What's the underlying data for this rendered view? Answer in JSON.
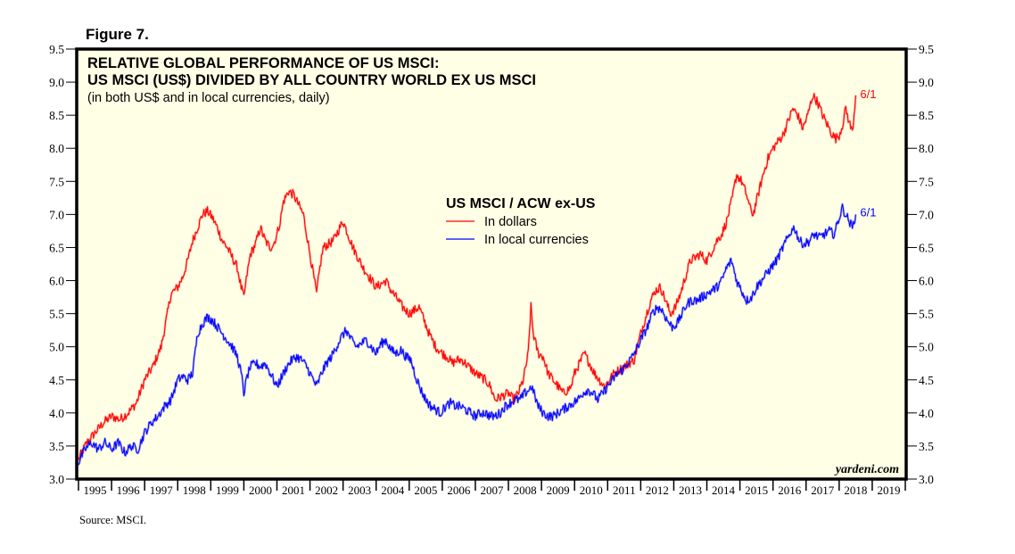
{
  "figure_label": "Figure 7.",
  "source": "Source: MSCI.",
  "watermark": "yardeni.com",
  "colors": {
    "plot_background": "#ffffe6",
    "dollars": "#ff0000",
    "local": "#0000ff"
  },
  "chart_data": {
    "type": "line",
    "title": "RELATIVE GLOBAL PERFORMANCE OF US MSCI:",
    "title_line2": "US MSCI (US$) DIVIDED BY ALL COUNTRY WORLD EX US MSCI",
    "subtitle": "(in both US$ and in local currencies, daily)",
    "legend_title": "US MSCI / ACW ex-US",
    "legend_position": "center-top",
    "xlabel": "",
    "ylabel": "",
    "xlim": [
      1995,
      2020
    ],
    "ylim": [
      3.0,
      9.5
    ],
    "y_ticks": [
      "3.0",
      "3.5",
      "4.0",
      "4.5",
      "5.0",
      "5.5",
      "6.0",
      "6.5",
      "7.0",
      "7.5",
      "8.0",
      "8.5",
      "9.0",
      "9.5"
    ],
    "x_tick_labels": [
      "1995",
      "1996",
      "1997",
      "1998",
      "1999",
      "2000",
      "2001",
      "2002",
      "2003",
      "2004",
      "2005",
      "2006",
      "2007",
      "2008",
      "2009",
      "2010",
      "2011",
      "2012",
      "2013",
      "2014",
      "2015",
      "2016",
      "2017",
      "2018",
      "2019"
    ],
    "grid": false,
    "series": [
      {
        "name": "In dollars",
        "color_key": "dollars",
        "end_label": "6/1",
        "x": [
          1995.0,
          1995.25,
          1995.5,
          1995.75,
          1996.0,
          1996.25,
          1996.5,
          1996.75,
          1997.0,
          1997.25,
          1997.5,
          1997.65,
          1997.8,
          1998.0,
          1998.15,
          1998.3,
          1998.45,
          1998.6,
          1998.75,
          1998.9,
          1999.05,
          1999.2,
          1999.35,
          1999.5,
          1999.65,
          1999.8,
          1999.92,
          2000.0,
          2000.1,
          2000.2,
          2000.35,
          2000.5,
          2000.65,
          2000.8,
          2000.9,
          2001.0,
          2001.1,
          2001.2,
          2001.35,
          2001.5,
          2001.65,
          2001.8,
          2001.9,
          2002.0,
          2002.1,
          2002.2,
          2002.3,
          2002.4,
          2002.55,
          2002.7,
          2002.85,
          2003.0,
          2003.15,
          2003.3,
          2003.45,
          2003.6,
          2003.8,
          2004.0,
          2004.15,
          2004.3,
          2004.45,
          2004.6,
          2004.8,
          2005.0,
          2005.15,
          2005.3,
          2005.45,
          2005.6,
          2005.8,
          2006.0,
          2006.15,
          2006.3,
          2006.45,
          2006.6,
          2006.8,
          2007.0,
          2007.15,
          2007.3,
          2007.45,
          2007.6,
          2007.8,
          2008.0,
          2008.15,
          2008.3,
          2008.45,
          2008.6,
          2008.68,
          2008.75,
          2008.9,
          2009.05,
          2009.2,
          2009.35,
          2009.5,
          2009.65,
          2009.8,
          2009.9,
          2010.0,
          2010.15,
          2010.3,
          2010.45,
          2010.6,
          2010.75,
          2010.9,
          2011.05,
          2011.2,
          2011.35,
          2011.5,
          2011.65,
          2011.8,
          2012.0,
          2012.15,
          2012.3,
          2012.45,
          2012.6,
          2012.75,
          2012.9,
          2013.05,
          2013.2,
          2013.35,
          2013.5,
          2013.65,
          2013.8,
          2014.0,
          2014.15,
          2014.3,
          2014.45,
          2014.6,
          2014.75,
          2014.9,
          2015.05,
          2015.2,
          2015.3,
          2015.4,
          2015.55,
          2015.7,
          2015.85,
          2016.0,
          2016.15,
          2016.3,
          2016.45,
          2016.6,
          2016.75,
          2016.9,
          2017.05,
          2017.2,
          2017.35,
          2017.5,
          2017.65,
          2017.8,
          2017.9,
          2018.0,
          2018.1,
          2018.2,
          2018.3,
          2018.4,
          2018.45,
          2018.5
        ],
        "values": [
          3.3,
          3.55,
          3.7,
          3.85,
          3.95,
          3.9,
          4.0,
          4.15,
          4.5,
          4.7,
          5.0,
          5.4,
          5.8,
          5.9,
          6.05,
          6.3,
          6.6,
          6.8,
          7.0,
          7.05,
          6.95,
          6.8,
          6.6,
          6.5,
          6.35,
          6.2,
          5.9,
          5.75,
          6.1,
          6.4,
          6.55,
          6.8,
          6.6,
          6.5,
          6.55,
          6.7,
          6.9,
          7.2,
          7.35,
          7.3,
          7.15,
          7.0,
          6.7,
          6.4,
          6.1,
          5.8,
          6.2,
          6.5,
          6.55,
          6.6,
          6.75,
          6.9,
          6.7,
          6.5,
          6.35,
          6.2,
          6.05,
          5.9,
          5.95,
          6.0,
          5.85,
          5.75,
          5.6,
          5.5,
          5.55,
          5.6,
          5.4,
          5.2,
          5.0,
          4.9,
          4.85,
          4.75,
          4.8,
          4.8,
          4.7,
          4.6,
          4.55,
          4.5,
          4.4,
          4.2,
          4.25,
          4.3,
          4.2,
          4.3,
          4.5,
          4.9,
          5.6,
          5.2,
          4.9,
          4.85,
          4.6,
          4.5,
          4.4,
          4.3,
          4.35,
          4.4,
          4.6,
          4.75,
          4.9,
          4.75,
          4.6,
          4.5,
          4.4,
          4.5,
          4.6,
          4.65,
          4.7,
          4.75,
          4.8,
          5.2,
          5.45,
          5.7,
          5.85,
          5.9,
          5.7,
          5.5,
          5.6,
          5.8,
          6.05,
          6.3,
          6.35,
          6.4,
          6.3,
          6.45,
          6.6,
          6.7,
          6.9,
          7.2,
          7.6,
          7.5,
          7.3,
          7.1,
          7.0,
          7.3,
          7.6,
          7.85,
          8.0,
          8.1,
          8.2,
          8.4,
          8.6,
          8.5,
          8.3,
          8.5,
          8.8,
          8.7,
          8.5,
          8.35,
          8.2,
          8.15,
          8.2,
          8.35,
          8.6,
          8.4,
          8.25,
          8.5,
          8.8
        ]
      },
      {
        "name": "In local currencies",
        "color_key": "local",
        "end_label": "6/1",
        "x": [
          1995.0,
          1995.2,
          1995.4,
          1995.6,
          1995.8,
          1996.0,
          1996.2,
          1996.4,
          1996.6,
          1996.8,
          1997.0,
          1997.2,
          1997.4,
          1997.6,
          1997.8,
          1998.0,
          1998.15,
          1998.3,
          1998.45,
          1998.6,
          1998.75,
          1998.9,
          1999.05,
          1999.2,
          1999.35,
          1999.5,
          1999.65,
          1999.8,
          1999.92,
          2000.0,
          2000.1,
          2000.2,
          2000.35,
          2000.5,
          2000.65,
          2000.8,
          2000.9,
          2001.0,
          2001.15,
          2001.3,
          2001.45,
          2001.6,
          2001.75,
          2001.9,
          2002.05,
          2002.2,
          2002.35,
          2002.5,
          2002.65,
          2002.8,
          2002.95,
          2003.1,
          2003.25,
          2003.4,
          2003.55,
          2003.7,
          2003.85,
          2004.0,
          2004.15,
          2004.3,
          2004.45,
          2004.6,
          2004.75,
          2004.9,
          2005.05,
          2005.2,
          2005.35,
          2005.5,
          2005.65,
          2005.8,
          2005.95,
          2006.1,
          2006.25,
          2006.4,
          2006.55,
          2006.7,
          2006.85,
          2007.0,
          2007.15,
          2007.3,
          2007.45,
          2007.6,
          2007.75,
          2007.9,
          2008.05,
          2008.2,
          2008.35,
          2008.5,
          2008.62,
          2008.7,
          2008.8,
          2008.9,
          2009.05,
          2009.2,
          2009.35,
          2009.5,
          2009.65,
          2009.8,
          2009.95,
          2010.1,
          2010.25,
          2010.4,
          2010.55,
          2010.7,
          2010.85,
          2011.0,
          2011.15,
          2011.3,
          2011.45,
          2011.6,
          2011.75,
          2011.9,
          2012.05,
          2012.2,
          2012.35,
          2012.5,
          2012.65,
          2012.8,
          2012.95,
          2013.1,
          2013.25,
          2013.4,
          2013.55,
          2013.7,
          2013.85,
          2014.0,
          2014.15,
          2014.3,
          2014.45,
          2014.6,
          2014.75,
          2014.9,
          2015.05,
          2015.2,
          2015.35,
          2015.5,
          2015.65,
          2015.8,
          2015.95,
          2016.1,
          2016.25,
          2016.4,
          2016.55,
          2016.65,
          2016.8,
          2016.95,
          2017.1,
          2017.25,
          2017.4,
          2017.55,
          2017.7,
          2017.85,
          2018.0,
          2018.1,
          2018.2,
          2018.3,
          2018.4,
          2018.5
        ],
        "values": [
          3.25,
          3.45,
          3.55,
          3.45,
          3.55,
          3.45,
          3.55,
          3.4,
          3.5,
          3.45,
          3.7,
          3.85,
          3.95,
          4.1,
          4.2,
          4.5,
          4.55,
          4.5,
          4.6,
          5.2,
          5.35,
          5.45,
          5.4,
          5.3,
          5.2,
          5.1,
          5.0,
          4.85,
          4.6,
          4.3,
          4.55,
          4.7,
          4.75,
          4.7,
          4.75,
          4.6,
          4.5,
          4.4,
          4.55,
          4.7,
          4.8,
          4.85,
          4.8,
          4.7,
          4.55,
          4.4,
          4.6,
          4.75,
          4.85,
          5.0,
          5.15,
          5.25,
          5.1,
          5.0,
          5.05,
          5.1,
          5.0,
          4.9,
          5.05,
          5.1,
          4.95,
          4.9,
          4.95,
          4.85,
          4.8,
          4.55,
          4.35,
          4.2,
          4.1,
          4.05,
          4.0,
          4.1,
          4.15,
          4.1,
          4.1,
          4.05,
          4.0,
          3.95,
          4.0,
          4.0,
          3.95,
          3.95,
          4.0,
          4.1,
          4.15,
          4.2,
          4.2,
          4.3,
          4.35,
          4.4,
          4.25,
          4.1,
          4.0,
          3.95,
          3.95,
          4.0,
          4.05,
          4.1,
          4.15,
          4.2,
          4.3,
          4.35,
          4.3,
          4.2,
          4.3,
          4.4,
          4.5,
          4.6,
          4.65,
          4.75,
          4.85,
          5.0,
          5.15,
          5.3,
          5.5,
          5.6,
          5.55,
          5.4,
          5.3,
          5.35,
          5.5,
          5.65,
          5.7,
          5.7,
          5.75,
          5.8,
          5.85,
          5.9,
          6.0,
          6.2,
          6.3,
          6.0,
          5.85,
          5.7,
          5.75,
          5.9,
          6.0,
          6.1,
          6.2,
          6.3,
          6.45,
          6.6,
          6.75,
          6.8,
          6.6,
          6.55,
          6.6,
          6.7,
          6.65,
          6.7,
          6.75,
          6.7,
          6.95,
          7.1,
          7.0,
          6.9,
          6.8,
          7.0
        ]
      }
    ]
  }
}
